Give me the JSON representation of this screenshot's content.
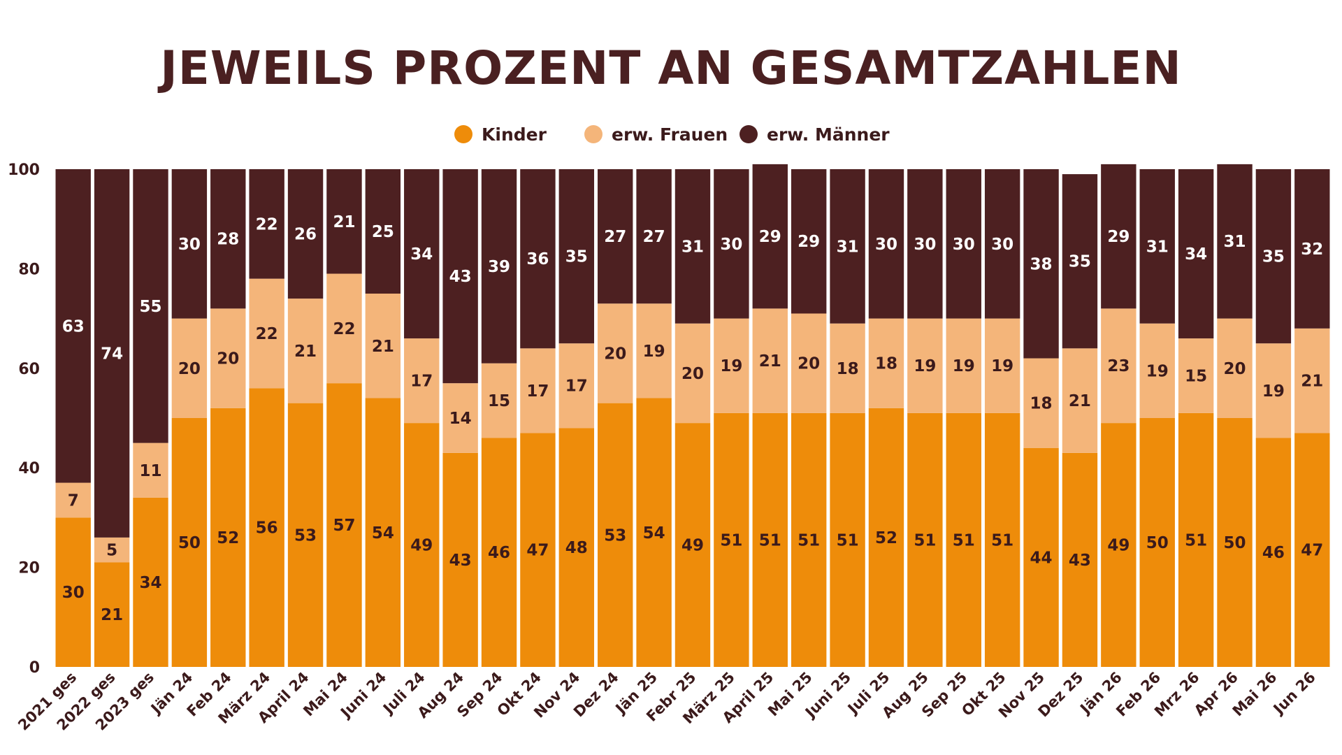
{
  "chart_data": {
    "type": "bar",
    "stacked": true,
    "title": "JEWEILS PROZENT AN GESAMTZAHLEN",
    "ylim": [
      0,
      100
    ],
    "yticks": [
      0,
      20,
      40,
      60,
      80,
      100
    ],
    "legend_position": "top-center",
    "categories": [
      "2021 ges",
      "2022 ges",
      "2023 ges",
      "Jän 24",
      "Feb 24",
      "März 24",
      "April 24",
      "Mai 24",
      "Juni 24",
      "Juli 24",
      "Aug 24",
      "Sep 24",
      "Okt 24",
      "Nov 24",
      "Dez 24",
      "Jän 25",
      "Febr 25",
      "März 25",
      "April 25",
      "Mai 25",
      "Juni 25",
      "Juli 25",
      "Aug 25",
      "Sep 25",
      "Okt 25",
      "Nov 25",
      "Dez 25",
      "Jän 26",
      "Feb 26",
      "Mrz 26",
      "Apr 26",
      "Mai 26",
      "Jun 26"
    ],
    "series": [
      {
        "name": "Kinder",
        "color": "#ee8c0a",
        "label_color": "#3b1a1b",
        "values": [
          30,
          21,
          34,
          50,
          52,
          56,
          53,
          57,
          54,
          49,
          43,
          46,
          47,
          48,
          53,
          54,
          49,
          51,
          51,
          51,
          51,
          52,
          51,
          51,
          51,
          44,
          43,
          49,
          50,
          51,
          50,
          46,
          47
        ]
      },
      {
        "name": "erw. Frauen",
        "color": "#f4b57a",
        "label_color": "#3b1a1b",
        "values": [
          7,
          5,
          11,
          20,
          20,
          22,
          21,
          22,
          21,
          17,
          14,
          15,
          17,
          17,
          20,
          19,
          20,
          19,
          21,
          20,
          18,
          18,
          19,
          19,
          19,
          18,
          21,
          23,
          19,
          15,
          20,
          19,
          21
        ]
      },
      {
        "name": "erw. Männer",
        "color": "#4d2021",
        "label_color": "#ffffff",
        "values": [
          63,
          74,
          55,
          30,
          28,
          22,
          26,
          21,
          25,
          34,
          43,
          39,
          36,
          35,
          27,
          27,
          31,
          30,
          29,
          29,
          31,
          30,
          30,
          30,
          30,
          38,
          35,
          29,
          31,
          34,
          31,
          35,
          32
        ]
      }
    ]
  }
}
